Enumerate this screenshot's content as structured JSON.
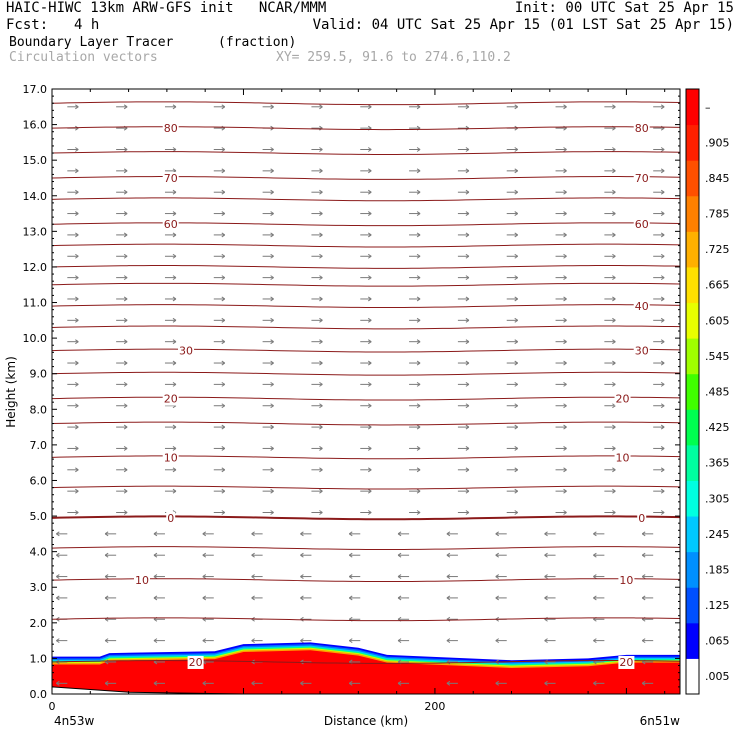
{
  "header": {
    "model": "HAIC-HIWC 13km ARW-GFS init   NCAR/MMM",
    "init": "Init: 00 UTC Sat 25 Apr 15",
    "fcst_label": "Fcst:",
    "fcst_value": "4 h",
    "valid": "Valid: 04 UTC Sat 25 Apr 15 (01 LST Sat 25 Apr 15)",
    "field": "Boundary Layer Tracer",
    "field_units": "(fraction)",
    "vectors": "Circulation vectors",
    "xy": "XY= 259.5, 91.6 to 274.6,110.2"
  },
  "colors": {
    "contour": "#8b1a1a",
    "vector": "#7a7a7a",
    "tracer_high": "#ff0000"
  },
  "chart_data": {
    "type": "heatmap",
    "title": "Boundary Layer Tracer",
    "units": "(fraction)",
    "xlabel": "Distance (km)",
    "ylabel": "Height (km)",
    "xlim": [
      0,
      328
    ],
    "ylim": [
      0,
      17
    ],
    "x_ticks": [
      0,
      200
    ],
    "x_tick_labels": [
      "0",
      "200"
    ],
    "x_end_labels": [
      "4n53w",
      "6n51w"
    ],
    "y_ticks": [
      0.0,
      1.0,
      2.0,
      3.0,
      4.0,
      5.0,
      6.0,
      7.0,
      8.0,
      9.0,
      10.0,
      11.0,
      12.0,
      13.0,
      14.0,
      15.0,
      16.0,
      17.0
    ],
    "y_tick_labels": [
      "0.0",
      "1.0",
      "2.0",
      "3.0",
      "4.0",
      "5.0",
      "6.0",
      "7.0",
      "8.0",
      "9.0",
      "10.0",
      "11.0",
      "12.0",
      "13.0",
      "14.0",
      "15.0",
      "16.0",
      "17.0"
    ],
    "colorbar_labels": [
      ".005",
      ".065",
      ".125",
      ".185",
      ".245",
      ".305",
      ".365",
      ".425",
      ".485",
      ".545",
      ".605",
      ".665",
      ".725",
      ".785",
      ".845",
      ".905",
      "–"
    ],
    "colorbar_colors": [
      "#ffffff",
      "#0000ff",
      "#0050ff",
      "#0090ff",
      "#00c8ff",
      "#00ffe0",
      "#00ffa0",
      "#00ff50",
      "#40ff00",
      "#a0ff00",
      "#e8ff00",
      "#ffe000",
      "#ffb000",
      "#ff8000",
      "#ff5000",
      "#ff2000",
      "#ff0000"
    ],
    "tracer_top_km": [
      {
        "x": 0,
        "z": 1.05
      },
      {
        "x": 25,
        "z": 1.05
      },
      {
        "x": 30,
        "z": 1.15
      },
      {
        "x": 85,
        "z": 1.2
      },
      {
        "x": 100,
        "z": 1.4
      },
      {
        "x": 135,
        "z": 1.45
      },
      {
        "x": 160,
        "z": 1.3
      },
      {
        "x": 175,
        "z": 1.1
      },
      {
        "x": 240,
        "z": 0.95
      },
      {
        "x": 280,
        "z": 1.0
      },
      {
        "x": 300,
        "z": 1.1
      },
      {
        "x": 328,
        "z": 1.1
      }
    ],
    "temperature_contours": [
      {
        "label": "80",
        "z": 15.9,
        "labels_at": [
          62,
          308
        ]
      },
      {
        "label": "70",
        "z": 14.5,
        "labels_at": [
          62,
          308
        ]
      },
      {
        "label": "60",
        "z": 13.2,
        "labels_at": [
          62,
          308
        ]
      },
      {
        "label": "40",
        "z": 10.9,
        "labels_at": [
          308
        ]
      },
      {
        "label": "30",
        "z": 9.65,
        "labels_at": [
          70,
          308
        ]
      },
      {
        "label": "20",
        "z": 8.3,
        "labels_at": [
          62,
          298
        ]
      },
      {
        "label": "10",
        "z": 6.65,
        "labels_at": [
          62,
          298
        ]
      },
      {
        "label": "0",
        "z": 4.95,
        "labels_at": [
          62,
          308
        ]
      },
      {
        "label": "10",
        "z": 3.2,
        "labels_at": [
          47,
          300
        ]
      },
      {
        "label": "20",
        "z": 0.9,
        "labels_at": [
          75,
          300
        ]
      }
    ],
    "unlabeled_contours_km": [
      16.6,
      15.2,
      13.9,
      12.6,
      12.0,
      11.5,
      10.3,
      9.0,
      7.6,
      5.8,
      4.1,
      2.1
    ],
    "wind": [
      {
        "z_from": 5.0,
        "z_to": 17.0,
        "direction": "east"
      },
      {
        "z_from": 0.0,
        "z_to": 5.0,
        "direction": "west"
      }
    ]
  }
}
